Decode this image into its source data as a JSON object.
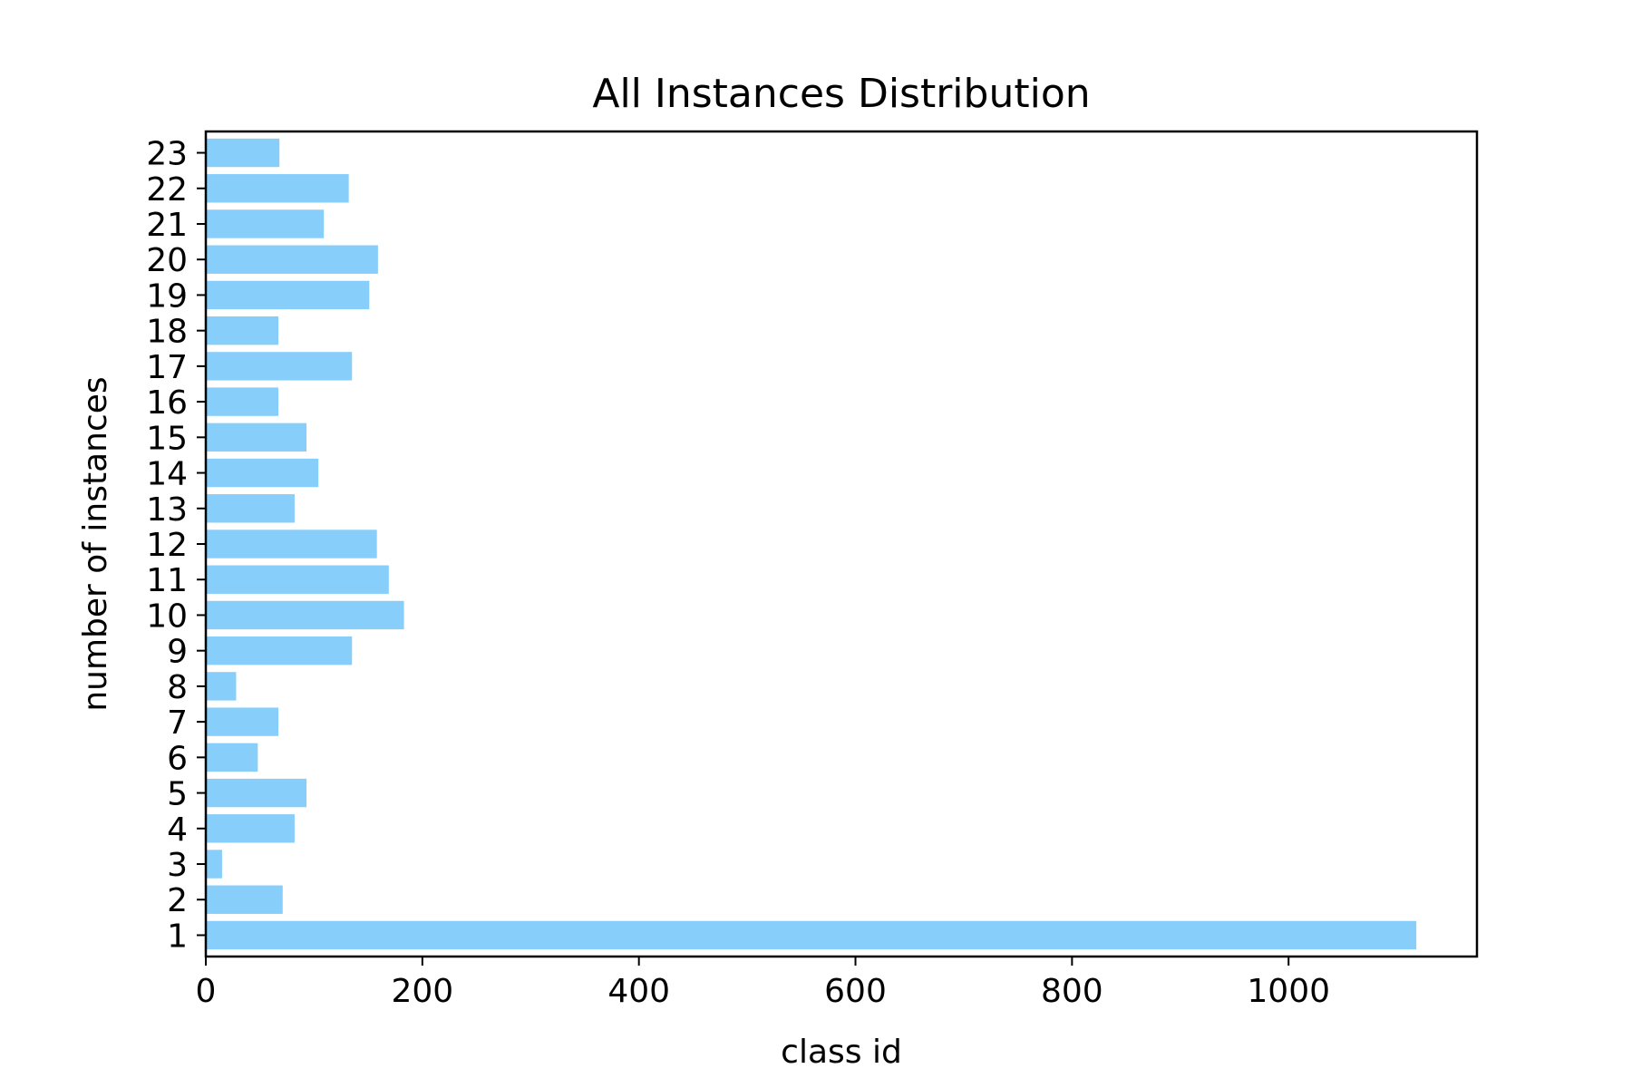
{
  "chart_data": {
    "type": "bar",
    "orientation": "horizontal",
    "title": "All Instances Distribution",
    "xlabel": "class id",
    "ylabel": "number of instances",
    "categories": [
      "1",
      "2",
      "3",
      "4",
      "5",
      "6",
      "7",
      "8",
      "9",
      "10",
      "11",
      "12",
      "13",
      "14",
      "15",
      "16",
      "17",
      "18",
      "19",
      "20",
      "21",
      "22",
      "23"
    ],
    "values": [
      1118,
      71,
      15,
      82,
      93,
      48,
      67,
      28,
      135,
      183,
      169,
      158,
      82,
      104,
      93,
      67,
      135,
      67,
      151,
      159,
      109,
      132,
      68
    ],
    "xlim": [
      0,
      1174
    ],
    "xticks": [
      0,
      200,
      400,
      600,
      800,
      1000
    ],
    "grid": false,
    "bar_color": "#87cefa"
  }
}
